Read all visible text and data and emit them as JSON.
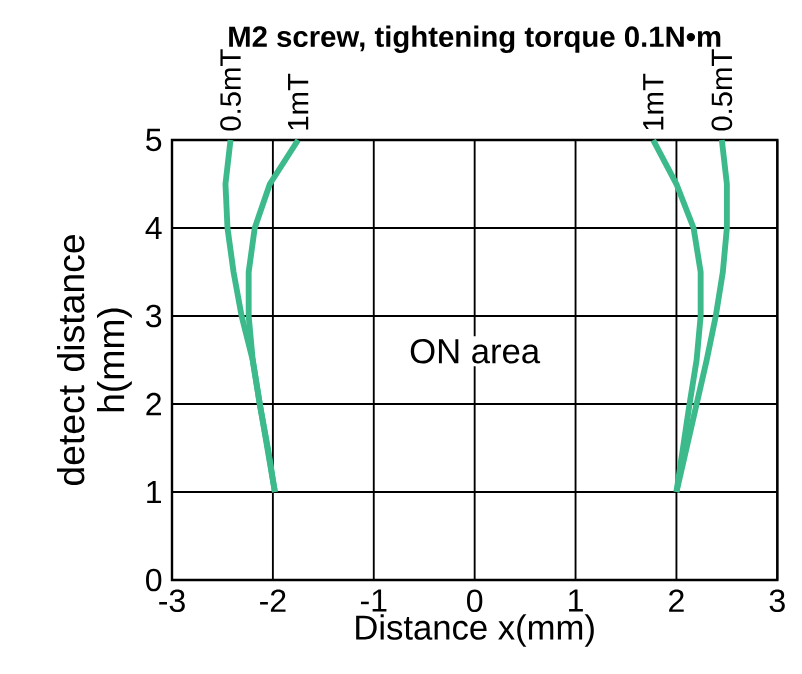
{
  "chart_data": {
    "type": "line",
    "title": "M2 screw, tightening torque 0.1N•m",
    "xlabel": "Distance x(mm)",
    "ylabel": "detect distance h(mm)",
    "xlim": [
      -3,
      3
    ],
    "ylim": [
      0,
      5
    ],
    "xticks": [
      -3,
      -2,
      -1,
      0,
      1,
      2,
      3
    ],
    "yticks": [
      0,
      1,
      2,
      3,
      4,
      5
    ],
    "grid": true,
    "marker": "none",
    "line_style": "solid",
    "annotations": [
      "ON area"
    ],
    "series": [
      {
        "name": "0.5mT",
        "color": "#3dba8c",
        "x": [
          -1.98,
          -2.05,
          -2.13,
          -2.2,
          -2.31,
          -2.39,
          -2.45,
          -2.47,
          -2.42
        ],
        "values": [
          1,
          1.5,
          2,
          2.5,
          3,
          3.5,
          4,
          4.5,
          5
        ]
      },
      {
        "name": "1mT",
        "color": "#3dba8c",
        "x": [
          -1.98,
          -2.13,
          -2.2,
          -2.24,
          -2.24,
          -2.18,
          -2.03,
          -1.75
        ],
        "values": [
          1,
          2,
          2.5,
          3,
          3.5,
          4,
          4.5,
          5
        ]
      },
      {
        "name": "1mT",
        "color": "#3dba8c",
        "x": [
          2.0,
          2.13,
          2.2,
          2.24,
          2.24,
          2.17,
          2.0,
          1.77
        ],
        "values": [
          1,
          2,
          2.5,
          3,
          3.5,
          4,
          4.5,
          5
        ]
      },
      {
        "name": "0.5mT",
        "color": "#3dba8c",
        "x": [
          2.0,
          2.1,
          2.2,
          2.3,
          2.39,
          2.46,
          2.5,
          2.5,
          2.45
        ],
        "values": [
          1,
          1.5,
          2,
          2.5,
          3,
          3.5,
          4,
          4.5,
          5
        ]
      }
    ]
  }
}
